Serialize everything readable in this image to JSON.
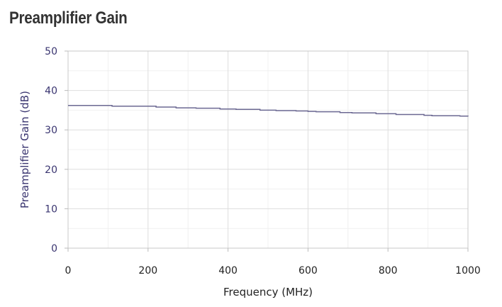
{
  "page": {
    "title": "Preamplifier Gain"
  },
  "chart_data": {
    "type": "line",
    "title": "Preamplifier Gain",
    "xlabel": "Frequency (MHz)",
    "ylabel": "Preamplifier Gain (dB)",
    "xlim": [
      0,
      1000
    ],
    "ylim": [
      0,
      50
    ],
    "x_ticks": [
      0,
      200,
      400,
      600,
      800,
      1000
    ],
    "y_ticks": [
      0,
      10,
      20,
      30,
      40,
      50
    ],
    "x_tick_labels": [
      "0",
      "200",
      "400",
      "600",
      "800",
      "1000"
    ],
    "y_tick_labels": [
      "0",
      "10",
      "20",
      "30",
      "40",
      "50"
    ],
    "grid": true,
    "line_color": "#6b6892",
    "series": [
      {
        "x": [
          0,
          110,
          220,
          270,
          320,
          380,
          420,
          480,
          520,
          570,
          600,
          620,
          680,
          710,
          770,
          820,
          890,
          910,
          980,
          1000
        ],
        "y": [
          36.2,
          36.0,
          35.8,
          35.6,
          35.5,
          35.3,
          35.2,
          35.0,
          34.9,
          34.8,
          34.7,
          34.6,
          34.4,
          34.3,
          34.1,
          33.9,
          33.7,
          33.6,
          33.5,
          33.4
        ]
      }
    ]
  }
}
